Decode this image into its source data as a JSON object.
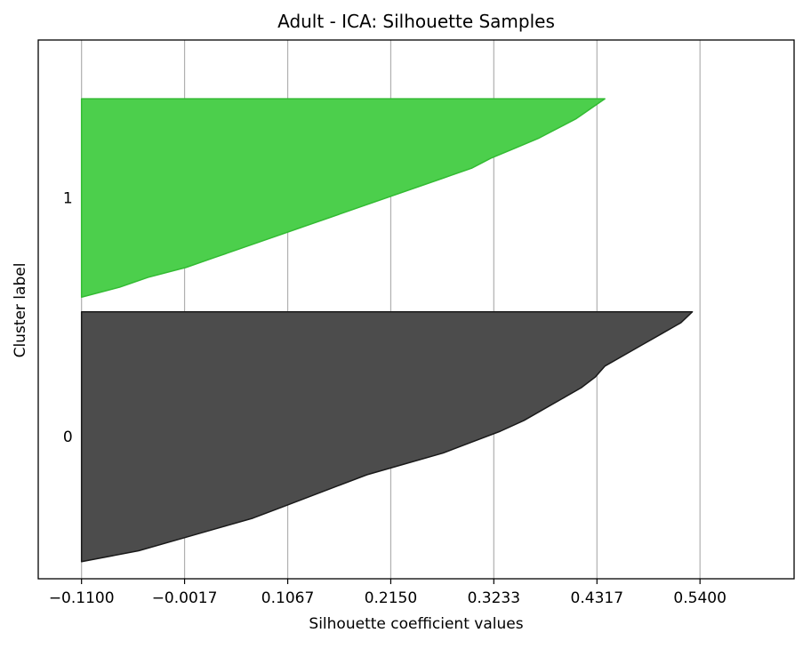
{
  "chart_data": {
    "type": "area",
    "title": "Adult - ICA: Silhouette Samples",
    "xlabel": "Silhouette coefficient values",
    "ylabel": "Cluster label",
    "xlim": [
      -0.1555,
      0.6389
    ],
    "ylim": [
      0,
      1.1
    ],
    "x_ticks": [
      "-0.1100",
      "-0.0017",
      "0.1067",
      "0.2150",
      "0.3233",
      "0.4317",
      "0.5400"
    ],
    "x_tick_values": [
      -0.11,
      -0.0017,
      0.1067,
      0.215,
      0.3233,
      0.4317,
      0.54
    ],
    "grid": "x",
    "clusters": [
      {
        "label": "0",
        "color": "#4c4c4c",
        "edge_color": "#1a1a1a",
        "y_range": [
          0.035,
          0.545
        ],
        "profile_x": [
          0.532,
          0.52,
          0.5,
          0.48,
          0.46,
          0.44,
          0.43,
          0.415,
          0.395,
          0.375,
          0.355,
          0.33,
          0.3,
          0.27,
          0.23,
          0.19,
          0.16,
          0.13,
          0.1,
          0.07,
          0.03,
          -0.01,
          -0.05,
          -0.11
        ]
      },
      {
        "label": "1",
        "color": "#4ccf4c",
        "edge_color": "#33bb33",
        "y_range": [
          0.575,
          0.98
        ],
        "profile_x": [
          0.44,
          0.425,
          0.41,
          0.39,
          0.37,
          0.345,
          0.32,
          0.3,
          0.27,
          0.24,
          0.21,
          0.18,
          0.15,
          0.12,
          0.09,
          0.06,
          0.03,
          0.0,
          -0.04,
          -0.07,
          -0.11
        ]
      }
    ]
  }
}
